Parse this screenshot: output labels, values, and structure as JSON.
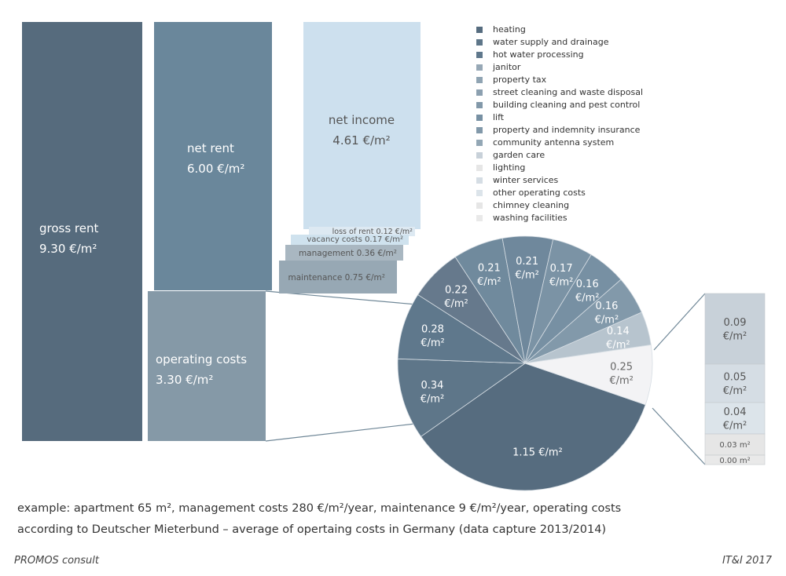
{
  "chart_data": {
    "type": "bar-of-pie",
    "bars": [
      {
        "name": "gross rent",
        "label": "gross rent",
        "value": "9.30 €/m²",
        "color": "#566b7d"
      },
      {
        "name": "net rent",
        "label": "net rent",
        "value": "6.00 €/m²",
        "color": "#6a879b"
      },
      {
        "name": "operating costs",
        "label": "operating costs",
        "value": "3.30 €/m²",
        "color": "#8599a7"
      },
      {
        "name": "net income",
        "label": "net income",
        "value": "4.61 €/m²",
        "color": "#cde0ee"
      }
    ],
    "deductions": [
      {
        "label": "loss of rent 0.12 €/m²",
        "value": 0.12,
        "color": "#dde9f2"
      },
      {
        "label": "vacancy costs 0.17 €/m²",
        "value": 0.17,
        "color": "#cfe2ee"
      },
      {
        "label": "management 0.36 €/m²",
        "value": 0.36,
        "color": "#a9b7c1"
      },
      {
        "label": "maintenance 0.75 €/m²",
        "value": 0.75,
        "color": "#97a8b4"
      }
    ],
    "pie": [
      {
        "value": 1.15,
        "label": "1.15 €/m²",
        "color": "#566c7f"
      },
      {
        "value": 0.34,
        "label": "0.34\n€/m²",
        "color": "#5e7689"
      },
      {
        "value": 0.28,
        "label": "0.28\n€/m²",
        "color": "#5f788c"
      },
      {
        "value": 0.22,
        "label": "0.22\n€/m²",
        "color": "#66798c"
      },
      {
        "value": 0.21,
        "label": "0.21\n€/m²",
        "color": "#708a9d"
      },
      {
        "value": 0.21,
        "label": "0.21\n€/m²",
        "color": "#6f889c"
      },
      {
        "value": 0.17,
        "label": "0.17\n€/m²",
        "color": "#7b93a5"
      },
      {
        "value": 0.16,
        "label": "0.16\n€/m²",
        "color": "#7790a3"
      },
      {
        "value": 0.16,
        "label": "0.16\n€/m²",
        "color": "#8299aa"
      },
      {
        "value": 0.14,
        "label": "0.14\n€/m²",
        "color": "#b7c4ce"
      },
      {
        "value": 0.25,
        "label": "0.25\n€/m²",
        "color": "#f3f3f5"
      }
    ],
    "other_breakdown": [
      {
        "value": 0.09,
        "label": "0.09\n€/m²",
        "color": "#c8d1d9"
      },
      {
        "value": 0.05,
        "label": "0.05\n€/m²",
        "color": "#d5dde4"
      },
      {
        "value": 0.04,
        "label": "0.04\n€/m²",
        "color": "#dce4ea"
      },
      {
        "value": 0.03,
        "label": "0.03 m²",
        "color": "#e6e6e6"
      },
      {
        "value": 0.0,
        "label": "0.00 m²",
        "color": "#e9e9e9"
      }
    ],
    "legend": [
      {
        "label": "heating",
        "color": "#566c7f"
      },
      {
        "label": "water supply and drainage",
        "color": "#5e7689"
      },
      {
        "label": "hot water processing",
        "color": "#5f788c"
      },
      {
        "label": "janitor",
        "color": "#97a8b6"
      },
      {
        "label": "property tax",
        "color": "#90a4b3"
      },
      {
        "label": "street cleaning and waste disposal",
        "color": "#8ca0b0"
      },
      {
        "label": "building cleaning and pest control",
        "color": "#8298a9"
      },
      {
        "label": "lift",
        "color": "#7790a3"
      },
      {
        "label": "property and indemnity insurance",
        "color": "#8299aa"
      },
      {
        "label": "community antenna system",
        "color": "#93a7b5"
      },
      {
        "label": "garden care",
        "color": "#c8d1d9"
      },
      {
        "label": "lighting",
        "color": "#e6e6e6"
      },
      {
        "label": "winter services",
        "color": "#d5dde4"
      },
      {
        "label": "other operating costs",
        "color": "#dce4ea"
      },
      {
        "label": "chimney cleaning",
        "color": "#e6e6e6"
      },
      {
        "label": "washing facilities",
        "color": "#e9e9e9"
      }
    ]
  },
  "caption": {
    "line1": "example: apartment 65 m², management costs 280 €/m²/year, maintenance 9 €/m²/year, operating costs",
    "line2": "according to Deutscher Mieterbund – average of opertaing costs in Germany (data capture 2013/2014)"
  },
  "footer": {
    "left": "PROMOS consult",
    "right": "IT&I 2017"
  }
}
